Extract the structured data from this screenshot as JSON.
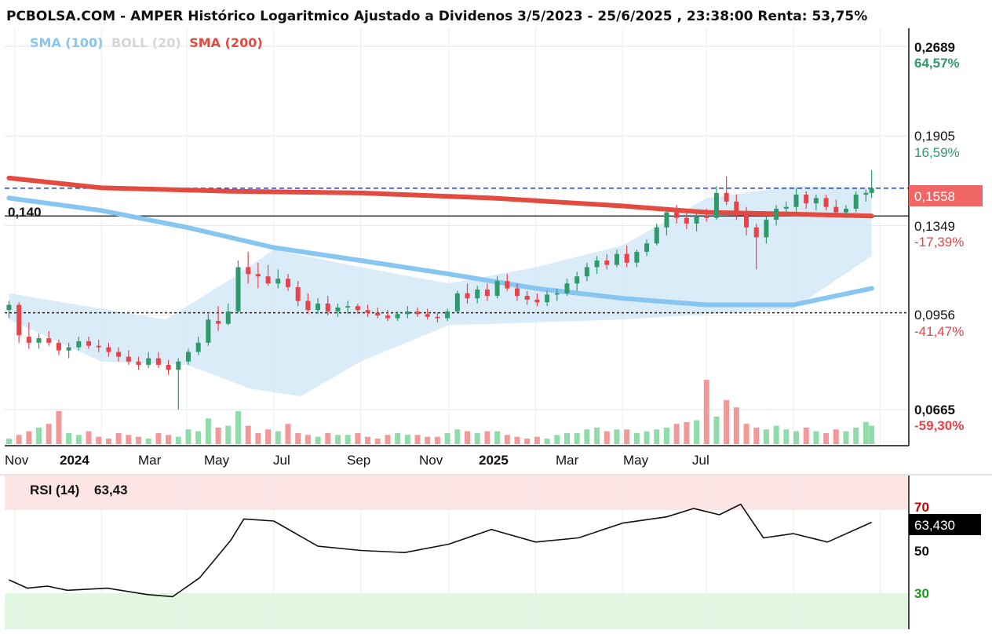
{
  "header": {
    "title": "PCBOLSA.COM - AMPER Histórico Logaritmico Ajustado a Dividenos 3/5/2023 - 25/6/2025 , 23:38:00 Renta: 53,75%"
  },
  "legend": {
    "sma100": "SMA (100)",
    "boll": "BOLL (20)",
    "sma200": "SMA (200)"
  },
  "colors": {
    "up": "#2e9a6c",
    "down": "#e8434a",
    "up_volume": "#8fdcaa",
    "down_volume": "#f29898",
    "sma100": "#86c6f0",
    "sma200": "#e44b40",
    "boll_band": "#cfe6f7",
    "current_line": "#1f3de8",
    "current_badge": "#f06565",
    "pct_positive": "#2e9a6c",
    "pct_negative": "#e8434a",
    "rsi_overbought_zone": "#fde5e5",
    "rsi_oversold_zone": "#e2f7e2"
  },
  "price_axis": {
    "levels": [
      {
        "price": "0,2689",
        "pct": "64,57%",
        "sign": "positive",
        "bold": true
      },
      {
        "price": "0,1905",
        "pct": "16,59%",
        "sign": "positive",
        "bold": false
      },
      {
        "price": "0,1349",
        "pct": "-17,39%",
        "sign": "negative",
        "bold": false
      },
      {
        "price": "0,0956",
        "pct": "-41,47%",
        "sign": "negative",
        "bold": false
      },
      {
        "price": "0,0665",
        "pct": "-59,30%",
        "sign": "negative",
        "bold": true
      }
    ],
    "current_price": "0,1558",
    "reference_price": "0,140"
  },
  "time_axis": {
    "labels": [
      {
        "text": "Nov",
        "year": false
      },
      {
        "text": "2024",
        "year": true
      },
      {
        "text": "Mar",
        "year": false
      },
      {
        "text": "May",
        "year": false
      },
      {
        "text": "Jul",
        "year": false
      },
      {
        "text": "Sep",
        "year": false
      },
      {
        "text": "Nov",
        "year": false
      },
      {
        "text": "2025",
        "year": true
      },
      {
        "text": "Mar",
        "year": false
      },
      {
        "text": "May",
        "year": false
      },
      {
        "text": "Jul",
        "year": false
      }
    ]
  },
  "rsi": {
    "label": "RSI (14)",
    "value_text": "63,43",
    "badge": "63,430",
    "overbought": "70",
    "mid": "50",
    "oversold": "30"
  },
  "chart_data": {
    "type": "candlestick",
    "title": "PCBOLSA.COM - AMPER Histórico Logaritmico Ajustado a Dividenos 3/5/2023 - 25/6/2025 , 23:38:00 Renta: 53,75%",
    "scale": "log",
    "date_range": [
      "2023-10-28",
      "2025-06-25"
    ],
    "y_axis_levels": [
      0.2689,
      0.1905,
      0.1349,
      0.0956,
      0.0665
    ],
    "current_price": 0.1558,
    "reference_line": 0.14,
    "dashed_reference": 0.0965,
    "grid": true,
    "legend_position": "top-left",
    "candles": [
      {
        "d": "2023-10-28",
        "o": 0.0975,
        "h": 0.101,
        "l": 0.0945,
        "c": 0.0995
      },
      {
        "d": "2023-11-04",
        "o": 0.0995,
        "h": 0.1005,
        "l": 0.086,
        "c": 0.0885
      },
      {
        "d": "2023-11-11",
        "o": 0.088,
        "h": 0.093,
        "l": 0.084,
        "c": 0.086
      },
      {
        "d": "2023-11-18",
        "o": 0.086,
        "h": 0.089,
        "l": 0.084,
        "c": 0.0875
      },
      {
        "d": "2023-11-25",
        "o": 0.0875,
        "h": 0.09,
        "l": 0.085,
        "c": 0.086
      },
      {
        "d": "2023-12-02",
        "o": 0.086,
        "h": 0.087,
        "l": 0.082,
        "c": 0.0835
      },
      {
        "d": "2023-12-09",
        "o": 0.0835,
        "h": 0.086,
        "l": 0.081,
        "c": 0.0845
      },
      {
        "d": "2023-12-16",
        "o": 0.0845,
        "h": 0.088,
        "l": 0.0835,
        "c": 0.0865
      },
      {
        "d": "2023-12-23",
        "o": 0.0865,
        "h": 0.088,
        "l": 0.084,
        "c": 0.085
      },
      {
        "d": "2023-12-30",
        "o": 0.085,
        "h": 0.087,
        "l": 0.083,
        "c": 0.0845
      },
      {
        "d": "2024-01-06",
        "o": 0.0845,
        "h": 0.086,
        "l": 0.0815,
        "c": 0.083
      },
      {
        "d": "2024-01-13",
        "o": 0.083,
        "h": 0.0845,
        "l": 0.08,
        "c": 0.0815
      },
      {
        "d": "2024-01-20",
        "o": 0.0815,
        "h": 0.0835,
        "l": 0.079,
        "c": 0.08
      },
      {
        "d": "2024-01-27",
        "o": 0.08,
        "h": 0.0815,
        "l": 0.0775,
        "c": 0.079
      },
      {
        "d": "2024-02-03",
        "o": 0.079,
        "h": 0.083,
        "l": 0.078,
        "c": 0.081
      },
      {
        "d": "2024-02-10",
        "o": 0.081,
        "h": 0.083,
        "l": 0.078,
        "c": 0.079
      },
      {
        "d": "2024-02-17",
        "o": 0.079,
        "h": 0.0805,
        "l": 0.076,
        "c": 0.0775
      },
      {
        "d": "2024-02-24",
        "o": 0.0775,
        "h": 0.081,
        "l": 0.0665,
        "c": 0.08
      },
      {
        "d": "2024-03-02",
        "o": 0.08,
        "h": 0.084,
        "l": 0.079,
        "c": 0.083
      },
      {
        "d": "2024-03-09",
        "o": 0.083,
        "h": 0.088,
        "l": 0.082,
        "c": 0.086
      },
      {
        "d": "2024-03-16",
        "o": 0.086,
        "h": 0.096,
        "l": 0.085,
        "c": 0.094
      },
      {
        "d": "2024-03-23",
        "o": 0.0935,
        "h": 0.099,
        "l": 0.09,
        "c": 0.0925
      },
      {
        "d": "2024-03-30",
        "o": 0.0925,
        "h": 0.1,
        "l": 0.092,
        "c": 0.097
      },
      {
        "d": "2024-04-06",
        "o": 0.097,
        "h": 0.118,
        "l": 0.0965,
        "c": 0.115
      },
      {
        "d": "2024-04-13",
        "o": 0.115,
        "h": 0.122,
        "l": 0.108,
        "c": 0.112
      },
      {
        "d": "2024-04-20",
        "o": 0.112,
        "h": 0.117,
        "l": 0.106,
        "c": 0.111
      },
      {
        "d": "2024-04-27",
        "o": 0.111,
        "h": 0.116,
        "l": 0.107,
        "c": 0.108
      },
      {
        "d": "2024-05-04",
        "o": 0.108,
        "h": 0.114,
        "l": 0.106,
        "c": 0.11
      },
      {
        "d": "2024-05-11",
        "o": 0.11,
        "h": 0.112,
        "l": 0.105,
        "c": 0.1065
      },
      {
        "d": "2024-05-18",
        "o": 0.1065,
        "h": 0.109,
        "l": 0.099,
        "c": 0.101
      },
      {
        "d": "2024-05-25",
        "o": 0.101,
        "h": 0.104,
        "l": 0.096,
        "c": 0.0975
      },
      {
        "d": "2024-06-01",
        "o": 0.0975,
        "h": 0.102,
        "l": 0.096,
        "c": 0.1
      },
      {
        "d": "2024-06-08",
        "o": 0.1,
        "h": 0.103,
        "l": 0.0955,
        "c": 0.097
      },
      {
        "d": "2024-06-15",
        "o": 0.097,
        "h": 0.1,
        "l": 0.095,
        "c": 0.0985
      },
      {
        "d": "2024-06-22",
        "o": 0.0985,
        "h": 0.101,
        "l": 0.096,
        "c": 0.099
      },
      {
        "d": "2024-06-29",
        "o": 0.099,
        "h": 0.1,
        "l": 0.096,
        "c": 0.0975
      },
      {
        "d": "2024-07-06",
        "o": 0.0975,
        "h": 0.0995,
        "l": 0.095,
        "c": 0.0965
      },
      {
        "d": "2024-07-13",
        "o": 0.0965,
        "h": 0.0985,
        "l": 0.0945,
        "c": 0.0955
      },
      {
        "d": "2024-07-20",
        "o": 0.0955,
        "h": 0.0975,
        "l": 0.0935,
        "c": 0.0945
      },
      {
        "d": "2024-07-27",
        "o": 0.0945,
        "h": 0.097,
        "l": 0.0935,
        "c": 0.096
      },
      {
        "d": "2024-08-03",
        "o": 0.096,
        "h": 0.099,
        "l": 0.0945,
        "c": 0.097
      },
      {
        "d": "2024-08-10",
        "o": 0.097,
        "h": 0.0985,
        "l": 0.095,
        "c": 0.096
      },
      {
        "d": "2024-08-17",
        "o": 0.096,
        "h": 0.098,
        "l": 0.094,
        "c": 0.095
      },
      {
        "d": "2024-08-24",
        "o": 0.095,
        "h": 0.0965,
        "l": 0.093,
        "c": 0.0945
      },
      {
        "d": "2024-08-31",
        "o": 0.0945,
        "h": 0.098,
        "l": 0.0935,
        "c": 0.097
      },
      {
        "d": "2024-09-07",
        "o": 0.097,
        "h": 0.105,
        "l": 0.0965,
        "c": 0.104
      },
      {
        "d": "2024-09-14",
        "o": 0.104,
        "h": 0.108,
        "l": 0.1,
        "c": 0.102
      },
      {
        "d": "2024-09-21",
        "o": 0.102,
        "h": 0.107,
        "l": 0.1,
        "c": 0.1055
      },
      {
        "d": "2024-09-28",
        "o": 0.1055,
        "h": 0.108,
        "l": 0.101,
        "c": 0.103
      },
      {
        "d": "2024-10-05",
        "o": 0.103,
        "h": 0.111,
        "l": 0.102,
        "c": 0.109
      },
      {
        "d": "2024-10-12",
        "o": 0.109,
        "h": 0.112,
        "l": 0.105,
        "c": 0.106
      },
      {
        "d": "2024-10-19",
        "o": 0.106,
        "h": 0.108,
        "l": 0.101,
        "c": 0.103
      },
      {
        "d": "2024-10-26",
        "o": 0.103,
        "h": 0.105,
        "l": 0.0995,
        "c": 0.1015
      },
      {
        "d": "2024-11-02",
        "o": 0.1015,
        "h": 0.104,
        "l": 0.099,
        "c": 0.1005
      },
      {
        "d": "2024-11-09",
        "o": 0.1005,
        "h": 0.105,
        "l": 0.099,
        "c": 0.1035
      },
      {
        "d": "2024-11-16",
        "o": 0.1035,
        "h": 0.106,
        "l": 0.101,
        "c": 0.104
      },
      {
        "d": "2024-11-23",
        "o": 0.104,
        "h": 0.11,
        "l": 0.103,
        "c": 0.108
      },
      {
        "d": "2024-11-30",
        "o": 0.108,
        "h": 0.113,
        "l": 0.105,
        "c": 0.111
      },
      {
        "d": "2024-12-07",
        "o": 0.111,
        "h": 0.117,
        "l": 0.109,
        "c": 0.115
      },
      {
        "d": "2024-12-14",
        "o": 0.115,
        "h": 0.12,
        "l": 0.112,
        "c": 0.118
      },
      {
        "d": "2024-12-21",
        "o": 0.118,
        "h": 0.121,
        "l": 0.114,
        "c": 0.116
      },
      {
        "d": "2024-12-28",
        "o": 0.116,
        "h": 0.123,
        "l": 0.115,
        "c": 0.121
      },
      {
        "d": "2025-01-04",
        "o": 0.121,
        "h": 0.125,
        "l": 0.115,
        "c": 0.117
      },
      {
        "d": "2025-01-11",
        "o": 0.117,
        "h": 0.123,
        "l": 0.115,
        "c": 0.122
      },
      {
        "d": "2025-01-18",
        "o": 0.122,
        "h": 0.128,
        "l": 0.12,
        "c": 0.126
      },
      {
        "d": "2025-01-25",
        "o": 0.126,
        "h": 0.136,
        "l": 0.125,
        "c": 0.134
      },
      {
        "d": "2025-02-01",
        "o": 0.134,
        "h": 0.144,
        "l": 0.13,
        "c": 0.142
      },
      {
        "d": "2025-02-08",
        "o": 0.142,
        "h": 0.146,
        "l": 0.136,
        "c": 0.139
      },
      {
        "d": "2025-02-15",
        "o": 0.139,
        "h": 0.144,
        "l": 0.133,
        "c": 0.136
      },
      {
        "d": "2025-02-22",
        "o": 0.136,
        "h": 0.142,
        "l": 0.132,
        "c": 0.14
      },
      {
        "d": "2025-03-01",
        "o": 0.14,
        "h": 0.144,
        "l": 0.137,
        "c": 0.139
      },
      {
        "d": "2025-03-08",
        "o": 0.139,
        "h": 0.157,
        "l": 0.138,
        "c": 0.153
      },
      {
        "d": "2025-03-15",
        "o": 0.153,
        "h": 0.163,
        "l": 0.146,
        "c": 0.148
      },
      {
        "d": "2025-03-22",
        "o": 0.148,
        "h": 0.152,
        "l": 0.138,
        "c": 0.142
      },
      {
        "d": "2025-03-29",
        "o": 0.142,
        "h": 0.145,
        "l": 0.13,
        "c": 0.134
      },
      {
        "d": "2025-04-05",
        "o": 0.134,
        "h": 0.136,
        "l": 0.114,
        "c": 0.129
      },
      {
        "d": "2025-04-12",
        "o": 0.129,
        "h": 0.14,
        "l": 0.126,
        "c": 0.138
      },
      {
        "d": "2025-04-19",
        "o": 0.138,
        "h": 0.146,
        "l": 0.135,
        "c": 0.144
      },
      {
        "d": "2025-04-26",
        "o": 0.144,
        "h": 0.148,
        "l": 0.141,
        "c": 0.145
      },
      {
        "d": "2025-05-03",
        "o": 0.145,
        "h": 0.156,
        "l": 0.142,
        "c": 0.152
      },
      {
        "d": "2025-05-10",
        "o": 0.152,
        "h": 0.154,
        "l": 0.144,
        "c": 0.147
      },
      {
        "d": "2025-05-17",
        "o": 0.147,
        "h": 0.152,
        "l": 0.143,
        "c": 0.15
      },
      {
        "d": "2025-05-24",
        "o": 0.15,
        "h": 0.152,
        "l": 0.143,
        "c": 0.145
      },
      {
        "d": "2025-05-31",
        "o": 0.145,
        "h": 0.149,
        "l": 0.14,
        "c": 0.142
      },
      {
        "d": "2025-06-07",
        "o": 0.142,
        "h": 0.146,
        "l": 0.139,
        "c": 0.144
      },
      {
        "d": "2025-06-14",
        "o": 0.144,
        "h": 0.154,
        "l": 0.142,
        "c": 0.152
      },
      {
        "d": "2025-06-21",
        "o": 0.152,
        "h": 0.155,
        "l": 0.148,
        "c": 0.153
      },
      {
        "d": "2025-06-25",
        "o": 0.153,
        "h": 0.167,
        "l": 0.15,
        "c": 0.1558
      }
    ],
    "sma100": [
      {
        "d": "2023-10-28",
        "v": 0.15
      },
      {
        "d": "2024-01-01",
        "v": 0.143
      },
      {
        "d": "2024-03-01",
        "v": 0.134
      },
      {
        "d": "2024-05-01",
        "v": 0.124
      },
      {
        "d": "2024-07-01",
        "v": 0.118
      },
      {
        "d": "2024-09-01",
        "v": 0.112
      },
      {
        "d": "2024-11-01",
        "v": 0.106
      },
      {
        "d": "2025-01-01",
        "v": 0.102
      },
      {
        "d": "2025-03-01",
        "v": 0.0995
      },
      {
        "d": "2025-05-01",
        "v": 0.0995
      },
      {
        "d": "2025-06-25",
        "v": 0.106
      }
    ],
    "sma200": [
      {
        "d": "2023-10-28",
        "v": 0.162
      },
      {
        "d": "2024-01-01",
        "v": 0.156
      },
      {
        "d": "2024-04-01",
        "v": 0.154
      },
      {
        "d": "2024-07-01",
        "v": 0.153
      },
      {
        "d": "2024-10-01",
        "v": 0.15
      },
      {
        "d": "2025-01-01",
        "v": 0.1455
      },
      {
        "d": "2025-03-01",
        "v": 0.142
      },
      {
        "d": "2025-05-01",
        "v": 0.141
      },
      {
        "d": "2025-06-25",
        "v": 0.14
      }
    ],
    "boll_upper": [
      {
        "d": "2023-10-28",
        "v": 0.104
      },
      {
        "d": "2024-01-01",
        "v": 0.098
      },
      {
        "d": "2024-02-15",
        "v": 0.094
      },
      {
        "d": "2024-04-01",
        "v": 0.11
      },
      {
        "d": "2024-05-01",
        "v": 0.123
      },
      {
        "d": "2024-07-01",
        "v": 0.115
      },
      {
        "d": "2024-09-01",
        "v": 0.108
      },
      {
        "d": "2024-11-01",
        "v": 0.115
      },
      {
        "d": "2025-01-01",
        "v": 0.125
      },
      {
        "d": "2025-03-01",
        "v": 0.15
      },
      {
        "d": "2025-05-01",
        "v": 0.157
      },
      {
        "d": "2025-06-25",
        "v": 0.156
      }
    ],
    "boll_lower": [
      {
        "d": "2023-10-28",
        "v": 0.094
      },
      {
        "d": "2024-01-01",
        "v": 0.08
      },
      {
        "d": "2024-03-01",
        "v": 0.079
      },
      {
        "d": "2024-04-15",
        "v": 0.072
      },
      {
        "d": "2024-05-20",
        "v": 0.07
      },
      {
        "d": "2024-07-01",
        "v": 0.08
      },
      {
        "d": "2024-09-01",
        "v": 0.092
      },
      {
        "d": "2024-11-01",
        "v": 0.093
      },
      {
        "d": "2025-01-01",
        "v": 0.094
      },
      {
        "d": "2025-03-01",
        "v": 0.096
      },
      {
        "d": "2025-05-01",
        "v": 0.098
      },
      {
        "d": "2025-06-25",
        "v": 0.12
      }
    ],
    "volumes": [
      3,
      5,
      7,
      9,
      11,
      18,
      6,
      5,
      7,
      4,
      3,
      6,
      5,
      4,
      3,
      6,
      5,
      4,
      8,
      7,
      14,
      9,
      10,
      18,
      10,
      6,
      8,
      7,
      11,
      6,
      5,
      4,
      6,
      5,
      5,
      6,
      4,
      3,
      5,
      6,
      5,
      5,
      4,
      4,
      6,
      8,
      7,
      6,
      7,
      7,
      5,
      4,
      3,
      4,
      3,
      5,
      6,
      6,
      8,
      9,
      7,
      8,
      8,
      6,
      7,
      8,
      9,
      11,
      12,
      13,
      35,
      15,
      24,
      20,
      11,
      9,
      8,
      10,
      8,
      7,
      9,
      7,
      6,
      8,
      7,
      9,
      12,
      10
    ],
    "rsi14": [
      {
        "d": "2023-10-28",
        "v": 36
      },
      {
        "d": "2023-11-10",
        "v": 32
      },
      {
        "d": "2023-11-24",
        "v": 33
      },
      {
        "d": "2023-12-08",
        "v": 31
      },
      {
        "d": "2024-01-05",
        "v": 32
      },
      {
        "d": "2024-02-02",
        "v": 29
      },
      {
        "d": "2024-02-20",
        "v": 28
      },
      {
        "d": "2024-03-10",
        "v": 37
      },
      {
        "d": "2024-04-01",
        "v": 55
      },
      {
        "d": "2024-04-10",
        "v": 65
      },
      {
        "d": "2024-05-01",
        "v": 64
      },
      {
        "d": "2024-06-01",
        "v": 52
      },
      {
        "d": "2024-07-01",
        "v": 50
      },
      {
        "d": "2024-08-01",
        "v": 49
      },
      {
        "d": "2024-09-01",
        "v": 53
      },
      {
        "d": "2024-10-01",
        "v": 60
      },
      {
        "d": "2024-11-01",
        "v": 54
      },
      {
        "d": "2024-12-01",
        "v": 56
      },
      {
        "d": "2025-01-01",
        "v": 63
      },
      {
        "d": "2025-02-01",
        "v": 66
      },
      {
        "d": "2025-02-20",
        "v": 70
      },
      {
        "d": "2025-03-10",
        "v": 67
      },
      {
        "d": "2025-03-25",
        "v": 72
      },
      {
        "d": "2025-04-10",
        "v": 56
      },
      {
        "d": "2025-05-01",
        "v": 58
      },
      {
        "d": "2025-05-25",
        "v": 54
      },
      {
        "d": "2025-06-25",
        "v": 63.43
      }
    ]
  }
}
